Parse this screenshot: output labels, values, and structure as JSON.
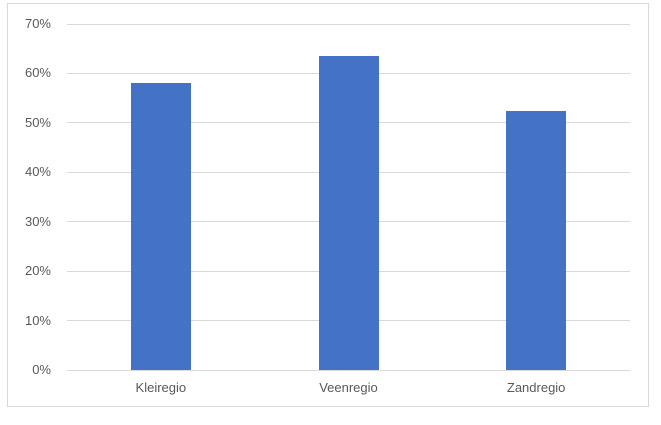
{
  "chart_data": {
    "type": "bar",
    "title": "",
    "xlabel": "",
    "ylabel": "",
    "categories": [
      "Kleiregio",
      "Veenregio",
      "Zandregio"
    ],
    "values": [
      58,
      63.5,
      52.5
    ],
    "ylim": [
      0,
      70
    ],
    "ytick_step": 10,
    "ytick_labels": [
      "0%",
      "10%",
      "20%",
      "30%",
      "40%",
      "50%",
      "60%",
      "70%"
    ],
    "grid": true,
    "legend": "none",
    "bar_color": "#4472C4",
    "gridline_color": "#D9D9D9",
    "frame_border_color": "#D9D9D9",
    "axis_text_color": "#595959"
  }
}
